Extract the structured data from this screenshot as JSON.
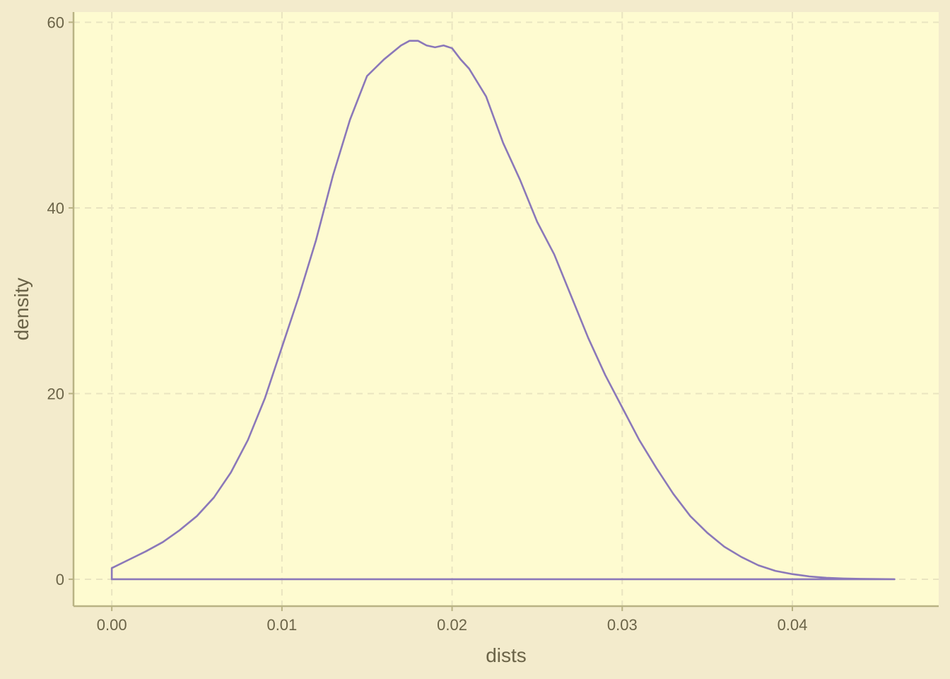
{
  "chart_data": {
    "type": "area",
    "title": "",
    "xlabel": "dists",
    "ylabel": "density",
    "xlim": [
      -0.00225,
      0.0486
    ],
    "ylim": [
      -2.9,
      61.1
    ],
    "x_ticks": [
      {
        "value": 0.0,
        "label": "0.00"
      },
      {
        "value": 0.01,
        "label": "0.01"
      },
      {
        "value": 0.02,
        "label": "0.02"
      },
      {
        "value": 0.03,
        "label": "0.03"
      },
      {
        "value": 0.04,
        "label": "0.04"
      }
    ],
    "y_ticks": [
      {
        "value": 0,
        "label": "0"
      },
      {
        "value": 20,
        "label": "20"
      },
      {
        "value": 40,
        "label": "40"
      },
      {
        "value": 60,
        "label": "60"
      }
    ],
    "grid": true,
    "legend": "none",
    "series": [
      {
        "x": [
          0.0,
          0.0,
          0.001,
          0.002,
          0.003,
          0.004,
          0.005,
          0.006,
          0.007,
          0.008,
          0.009,
          0.01,
          0.011,
          0.012,
          0.013,
          0.014,
          0.015,
          0.016,
          0.017,
          0.0175,
          0.018,
          0.0185,
          0.019,
          0.0195,
          0.02,
          0.0205,
          0.021,
          0.022,
          0.023,
          0.024,
          0.025,
          0.026,
          0.027,
          0.028,
          0.029,
          0.03,
          0.031,
          0.032,
          0.033,
          0.034,
          0.035,
          0.036,
          0.037,
          0.038,
          0.039,
          0.04,
          0.041,
          0.042,
          0.043,
          0.044,
          0.045,
          0.046
        ],
        "y": [
          0.0,
          1.2,
          2.1,
          3.0,
          4.0,
          5.3,
          6.8,
          8.8,
          11.5,
          15.0,
          19.5,
          25.0,
          30.5,
          36.5,
          43.5,
          49.5,
          54.2,
          56.0,
          57.5,
          58.0,
          58.0,
          57.5,
          57.3,
          57.5,
          57.2,
          56.0,
          55.0,
          52.0,
          47.0,
          43.0,
          38.5,
          35.0,
          30.5,
          26.0,
          22.0,
          18.5,
          15.0,
          12.0,
          9.2,
          6.8,
          5.0,
          3.5,
          2.4,
          1.5,
          0.9,
          0.55,
          0.3,
          0.15,
          0.08,
          0.04,
          0.02,
          0.0
        ]
      }
    ]
  },
  "colors": {
    "background": "#f3ebcc",
    "panel": "#fefbd0",
    "grid": "#e9e4c0",
    "axis_line": "#b9b384",
    "text": "#6b6448",
    "line": "#8b78b9"
  }
}
